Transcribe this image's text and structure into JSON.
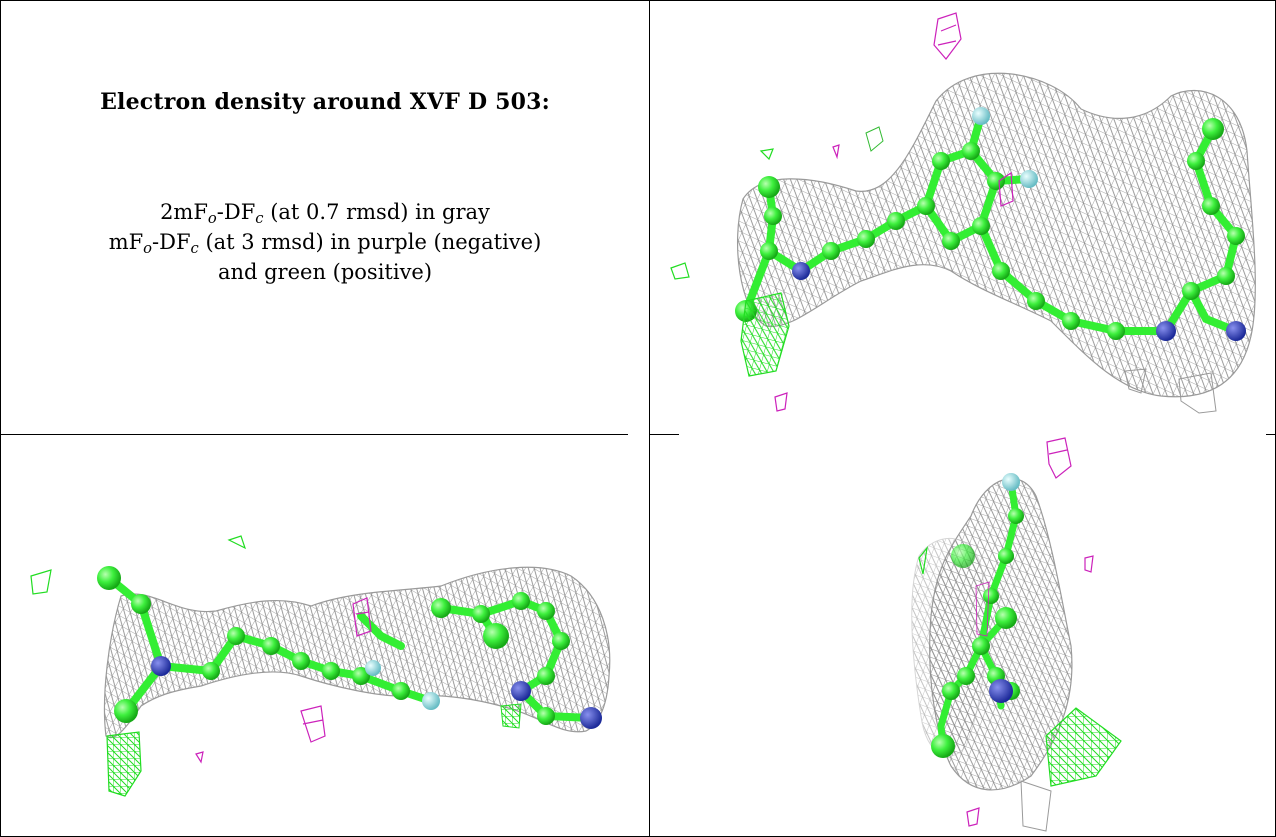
{
  "legend": {
    "title": "Electron density around XVF D 503:",
    "line1_prefix": "2mF",
    "line1_sub1": "o",
    "line1_mid": "-DF",
    "line1_sub2": "c",
    "line1_rest": "(at 0.7 rmsd) in gray",
    "line2_prefix": "mF",
    "line2_sub1": "o",
    "line2_mid": "-DF",
    "line2_sub2": "c",
    "line2_rest": "(at 3 rmsd) in purple (negative)",
    "line3": "and green (positive)"
  },
  "colors": {
    "gray_mesh": "#8a8a8a",
    "carbon": "#33ee33",
    "nitrogen": "#3344bb",
    "fluorine": "#99dde0",
    "negative": "#cc22bb",
    "positive": "#22dd22"
  }
}
